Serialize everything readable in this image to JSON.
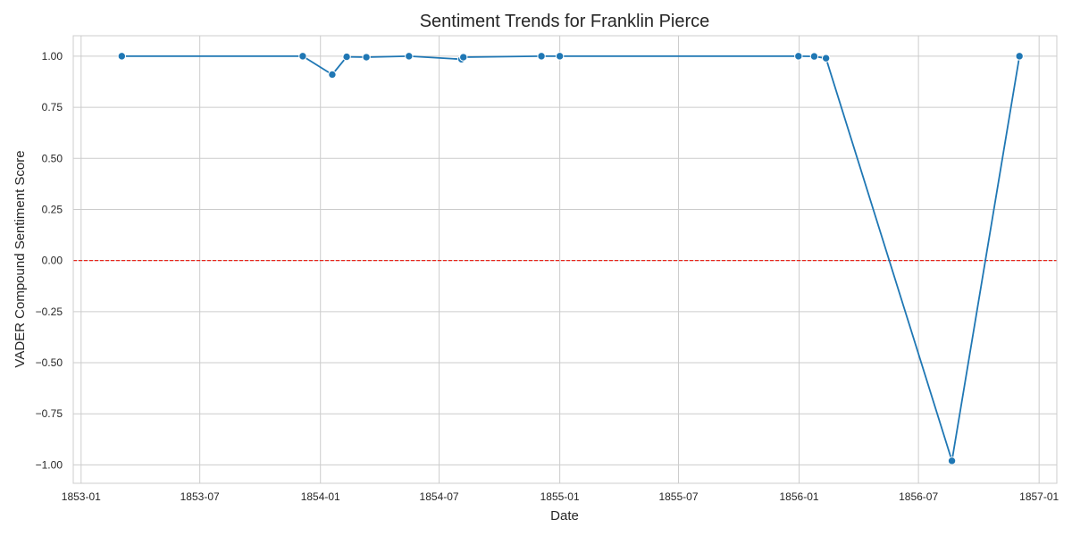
{
  "chart_data": {
    "type": "line",
    "title": "Sentiment Trends for Franklin Pierce",
    "xlabel": "Date",
    "ylabel": "VADER Compound Sentiment Score",
    "x_type": "date",
    "xlim": [
      "1852-12-20",
      "1857-01-28"
    ],
    "ylim": [
      -1.09,
      1.1
    ],
    "x_ticks": [
      "1853-01-01",
      "1853-07-01",
      "1854-01-01",
      "1854-07-01",
      "1855-01-01",
      "1855-07-01",
      "1856-01-01",
      "1856-07-01",
      "1857-01-01"
    ],
    "x_tick_labels": [
      "1853-01",
      "1853-07",
      "1854-01",
      "1854-07",
      "1855-01",
      "1855-07",
      "1856-01",
      "1856-07",
      "1857-01"
    ],
    "y_ticks": [
      1.0,
      0.75,
      0.5,
      0.25,
      0.0,
      -0.25,
      -0.5,
      -0.75,
      -1.0
    ],
    "y_tick_labels": [
      "1.00",
      "0.75",
      "0.50",
      "0.25",
      "0.00",
      "−0.25",
      "−0.50",
      "−0.75",
      "−1.00"
    ],
    "grid": true,
    "reference_line": {
      "y": 0.0,
      "color": "#e8281e",
      "style": "dashed"
    },
    "series": [
      {
        "color": "#1f77b4",
        "x": [
          "1853-03-04",
          "1853-12-05",
          "1854-01-19",
          "1854-02-10",
          "1854-03-12",
          "1854-05-16",
          "1854-08-04",
          "1854-08-07",
          "1854-12-04",
          "1855-01-01",
          "1855-12-31",
          "1856-01-24",
          "1856-02-11",
          "1856-08-21",
          "1856-12-02"
        ],
        "y": [
          1.0,
          1.0,
          0.91,
          0.997,
          0.995,
          1.0,
          0.985,
          0.995,
          1.0,
          1.0,
          1.0,
          0.999,
          0.99,
          -0.98,
          1.0
        ]
      }
    ]
  }
}
